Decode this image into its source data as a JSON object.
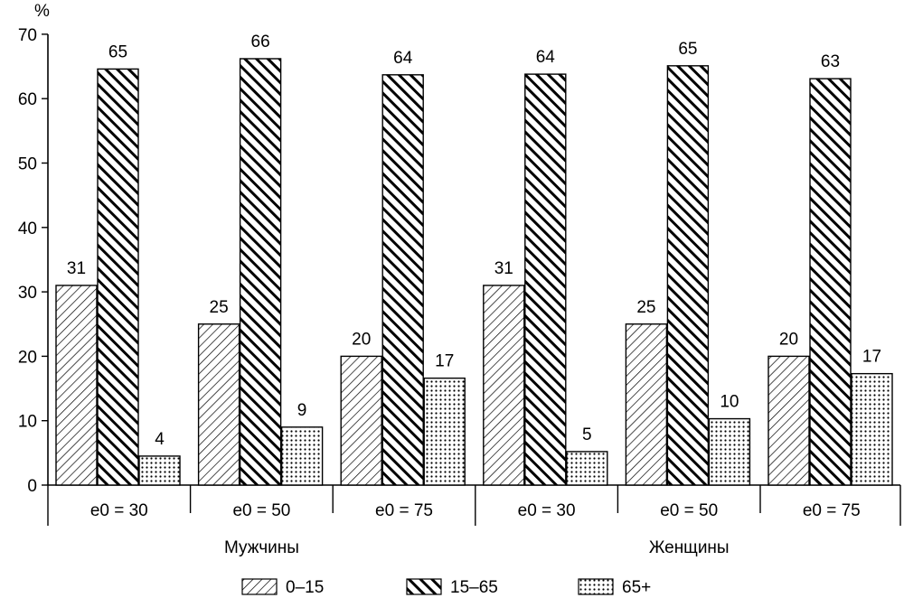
{
  "chart_data": {
    "type": "bar",
    "ylabel": "%",
    "ylim": [
      0,
      70
    ],
    "yticks": [
      0,
      10,
      20,
      30,
      40,
      50,
      60,
      70
    ],
    "groups": [
      {
        "label": "Мужчины",
        "categories": [
          "e0 = 30",
          "e0 = 50",
          "e0 = 75"
        ]
      },
      {
        "label": "Женщины",
        "categories": [
          "e0 = 30",
          "e0 = 50",
          "e0 = 75"
        ]
      }
    ],
    "series": [
      {
        "name": "0–15",
        "pattern": "light-diagonal",
        "values": [
          31,
          25,
          20,
          31,
          25,
          20
        ],
        "labels": [
          "31",
          "25",
          "20",
          "31",
          "25",
          "20"
        ]
      },
      {
        "name": "15–65",
        "pattern": "heavy-diagonal",
        "values": [
          64.6,
          66.2,
          63.7,
          63.8,
          65.1,
          63.1
        ],
        "labels": [
          "65",
          "66",
          "64",
          "64",
          "65",
          "63"
        ]
      },
      {
        "name": "65+",
        "pattern": "dots",
        "values": [
          4.5,
          9,
          16.6,
          5.2,
          10.3,
          17.3
        ],
        "labels": [
          "4",
          "9",
          "17",
          "5",
          "10",
          "17"
        ]
      }
    ],
    "grid": false,
    "legend": "bottom",
    "colors": {
      "ink": "#000000",
      "background": "#ffffff"
    }
  }
}
